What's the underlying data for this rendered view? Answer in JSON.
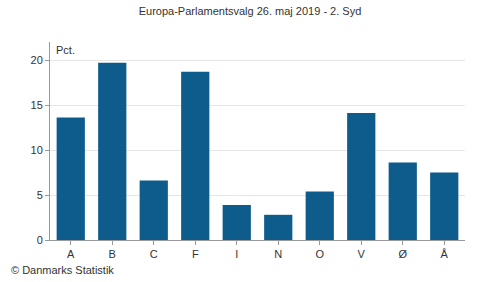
{
  "chart_data": {
    "type": "bar",
    "title": "Europa-Parlamentsvalg 26. maj 2019 - 2. Syd",
    "ylabel": "Pct.",
    "source": "© Danmarks Statistik",
    "categories": [
      "A",
      "B",
      "C",
      "F",
      "I",
      "N",
      "O",
      "V",
      "Ø",
      "Å"
    ],
    "values": [
      13.6,
      19.7,
      6.6,
      18.7,
      3.9,
      2.8,
      5.4,
      14.1,
      8.6,
      7.5
    ],
    "color": "#0d5c8c",
    "ylim": [
      0,
      22
    ],
    "yticks": [
      0,
      5,
      10,
      15,
      20
    ],
    "grid": true
  }
}
